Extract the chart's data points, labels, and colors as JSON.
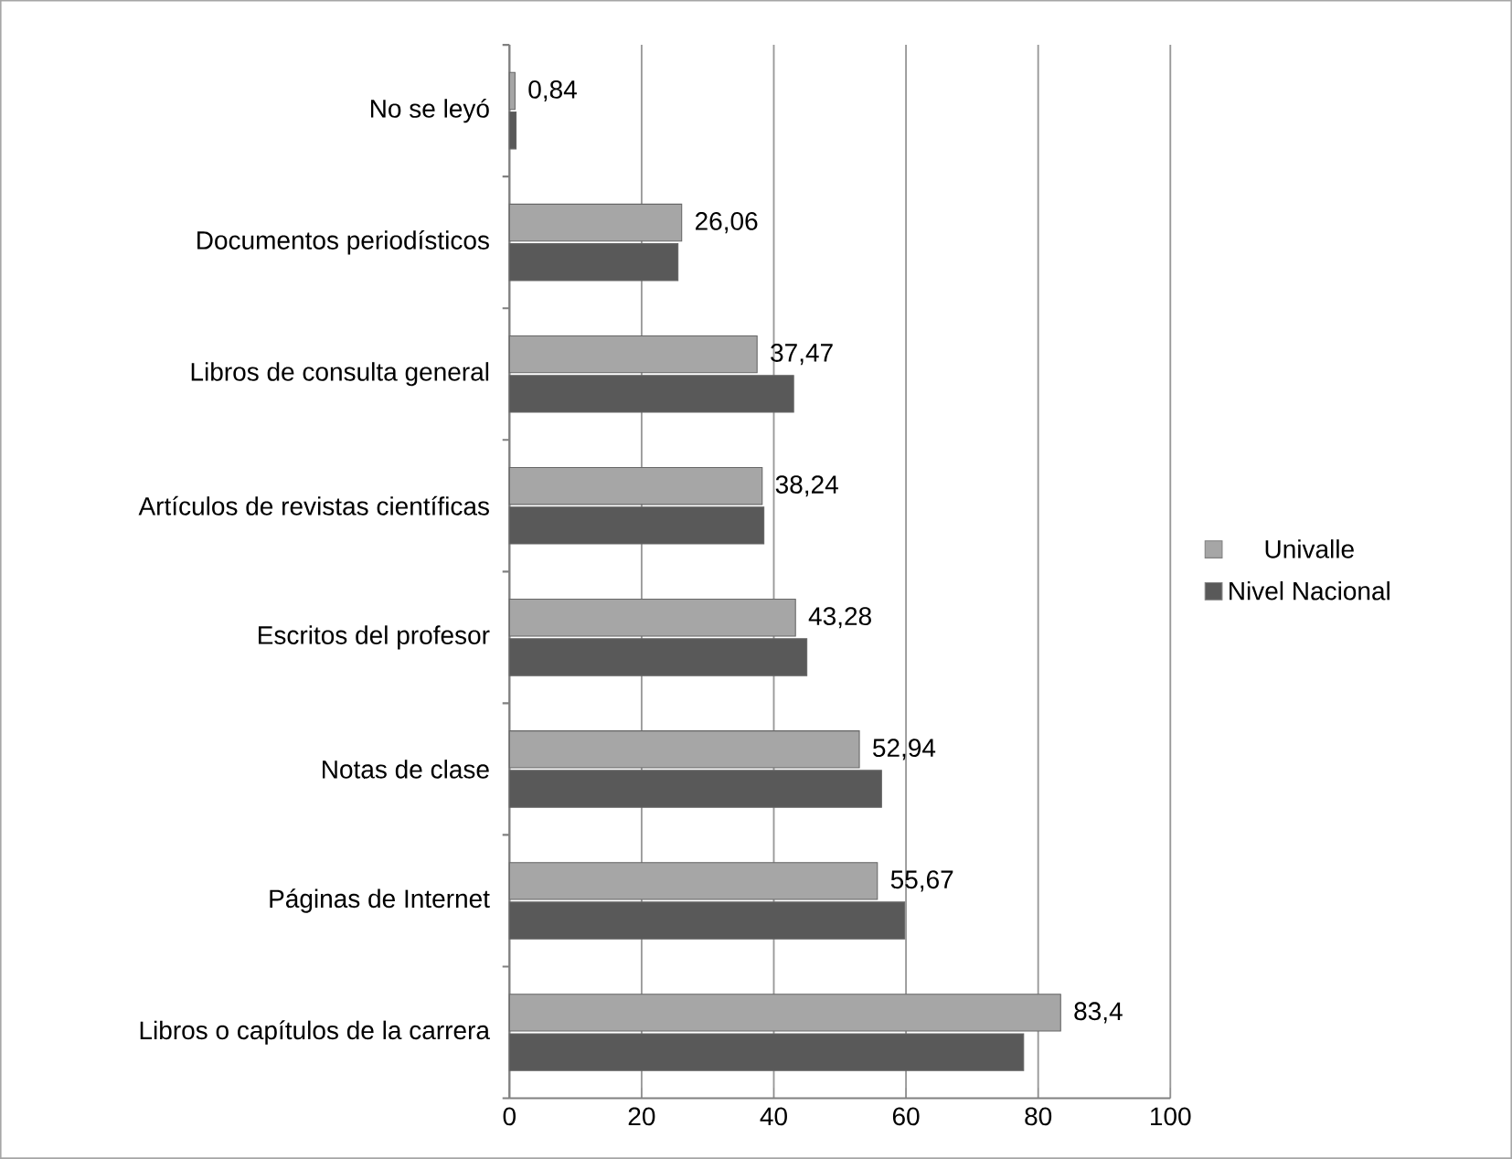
{
  "chart_data": {
    "type": "bar",
    "orientation": "horizontal",
    "categories": [
      "No se leyó",
      "Documentos periodísticos",
      "Libros de consulta general",
      "Artículos de revistas científicas",
      "Escritos del profesor",
      "Notas de clase",
      "Páginas de Internet",
      "Libros o capítulos de la carrera"
    ],
    "series": [
      {
        "name": "Univalle",
        "color": "#a6a6a6",
        "values": [
          0.84,
          26.06,
          37.47,
          38.24,
          43.28,
          52.94,
          55.67,
          83.4
        ],
        "value_labels": [
          "0,84",
          "26,06",
          "37,47",
          "38,24",
          "43,28",
          "52,94",
          "55,67",
          "83,4"
        ]
      },
      {
        "name": "Nivel Nacional",
        "color": "#595959",
        "values": [
          1,
          25.5,
          43,
          38.5,
          45,
          56.3,
          59.8,
          77.8
        ]
      }
    ],
    "xlim": [
      0,
      100
    ],
    "xticks": [
      0,
      20,
      40,
      60,
      80,
      100
    ],
    "grid": "x",
    "legend": "right"
  }
}
